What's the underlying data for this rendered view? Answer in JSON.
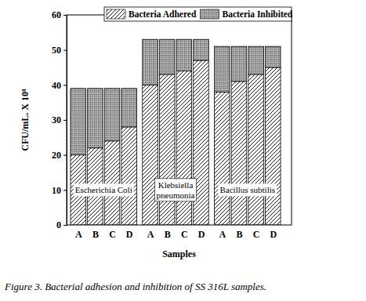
{
  "chart_data": {
    "type": "bar",
    "stacked": true,
    "title": "Figure 3. Bacterial adhesion and inhibition of SS 316L samples.",
    "x_label": "Samples",
    "y_label": "CFU/mL. X 10⁸",
    "categories": [
      "A",
      "B",
      "C",
      "D",
      "A",
      "B",
      "C",
      "D",
      "A",
      "B",
      "C",
      "D"
    ],
    "annotations": [
      [
        "Escherichia Coli"
      ],
      [
        "Klebsiella",
        "pneumonia"
      ],
      [
        "Bacillus subtilis"
      ]
    ],
    "series": [
      {
        "name": "Bacteria Adhered",
        "color": "#000000",
        "values": [
          20,
          22,
          24,
          28,
          40,
          43,
          44,
          47,
          38,
          41,
          43,
          45
        ]
      },
      {
        "name": "Bacteria Inhibited",
        "color": "#333333",
        "values": [
          19,
          17,
          15,
          11,
          13,
          10,
          9,
          6,
          13,
          10,
          8,
          6
        ]
      }
    ],
    "ylim": [
      0,
      60
    ],
    "yticks": [
      0,
      10,
      20,
      30,
      40,
      50,
      60
    ],
    "legend": "top-right",
    "grid": false
  }
}
